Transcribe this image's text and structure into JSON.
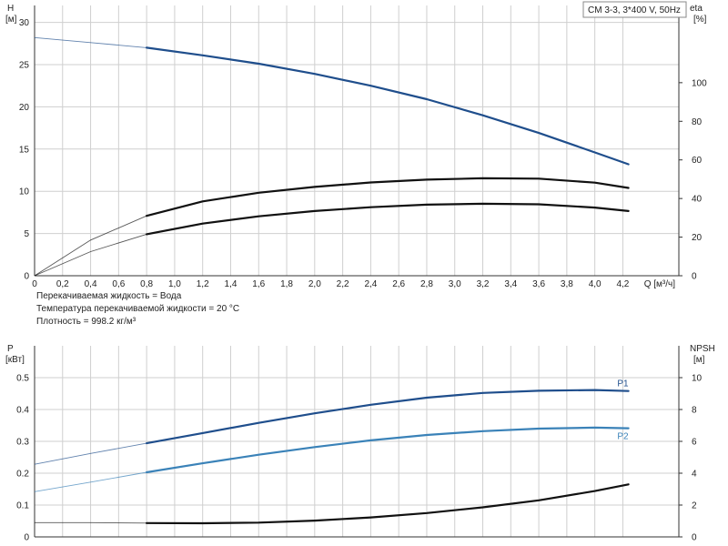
{
  "chart_data": [
    {
      "type": "line",
      "title": "CM 3-3, 3*400 V, 50Hz",
      "xlabel": "Q [м³/ч]",
      "ylabel": "H\n[м]",
      "ylabel_line1": "H",
      "ylabel_line2": "[м]",
      "y2label_line1": "eta",
      "y2label_line2": "[%]",
      "xlim": [
        0,
        4.6
      ],
      "ylim": [
        0,
        32
      ],
      "y2lim": [
        0,
        140
      ],
      "x_ticks": [
        "0",
        "0,2",
        "0,4",
        "0,6",
        "0,8",
        "1,0",
        "1,2",
        "1,4",
        "1,6",
        "1,8",
        "2,0",
        "2,2",
        "2,4",
        "2,6",
        "2,8",
        "3,0",
        "3,2",
        "3,4",
        "3,6",
        "3,8",
        "4,0",
        "4,2"
      ],
      "y_ticks": [
        "0",
        "5",
        "10",
        "15",
        "20",
        "25",
        "30"
      ],
      "y2_ticks": [
        "0",
        "20",
        "40",
        "60",
        "80",
        "100"
      ],
      "grid": true,
      "series": [
        {
          "axis": "left",
          "color": "#1f4e8c",
          "x": [
            0,
            0.4,
            0.8,
            1.2,
            1.6,
            2.0,
            2.4,
            2.8,
            3.2,
            3.6,
            4.0,
            4.24
          ],
          "values": [
            28.2,
            27.6,
            27.0,
            26.1,
            25.1,
            23.9,
            22.5,
            20.9,
            19.0,
            16.9,
            14.6,
            13.2
          ]
        },
        {
          "axis": "right",
          "color": "#111111",
          "x": [
            0,
            0.4,
            0.8,
            1.2,
            1.6,
            2.0,
            2.4,
            2.8,
            3.2,
            3.6,
            4.0,
            4.24
          ],
          "values": [
            0,
            18.5,
            31,
            38.5,
            43,
            46,
            48.3,
            49.8,
            50.5,
            50.3,
            48.2,
            45.5
          ]
        },
        {
          "axis": "right",
          "color": "#111111",
          "x": [
            0,
            0.4,
            0.8,
            1.2,
            1.6,
            2.0,
            2.4,
            2.8,
            3.2,
            3.6,
            4.0,
            4.24
          ],
          "values": [
            0,
            12.5,
            21.5,
            27,
            30.8,
            33.5,
            35.5,
            36.8,
            37.3,
            37,
            35.3,
            33.5
          ]
        }
      ]
    },
    {
      "type": "line",
      "xlim": [
        0,
        4.6
      ],
      "ylim": [
        0,
        0.6
      ],
      "y2lim": [
        0,
        12
      ],
      "ylabel_line1": "P",
      "ylabel_line2": "[кВт]",
      "y2label_line1": "NPSH",
      "y2label_line2": "[м]",
      "y_ticks": [
        "0",
        "0.1",
        "0.2",
        "0.3",
        "0.4",
        "0.5"
      ],
      "y2_ticks": [
        "0",
        "2",
        "4",
        "6",
        "8",
        "10"
      ],
      "grid": true,
      "series": [
        {
          "name": "P1",
          "axis": "left",
          "color": "#1f4e8c",
          "x": [
            0,
            0.4,
            0.8,
            1.2,
            1.6,
            2.0,
            2.4,
            2.8,
            3.2,
            3.6,
            4.0,
            4.24
          ],
          "values": [
            0.228,
            0.262,
            0.294,
            0.326,
            0.358,
            0.388,
            0.415,
            0.437,
            0.452,
            0.459,
            0.461,
            0.458
          ]
        },
        {
          "name": "P2",
          "axis": "left",
          "color": "#3a82b8",
          "x": [
            0,
            0.4,
            0.8,
            1.2,
            1.6,
            2.0,
            2.4,
            2.8,
            3.2,
            3.6,
            4.0,
            4.24
          ],
          "values": [
            0.142,
            0.172,
            0.203,
            0.231,
            0.258,
            0.282,
            0.303,
            0.32,
            0.332,
            0.34,
            0.343,
            0.341
          ]
        },
        {
          "axis": "right",
          "color": "#111111",
          "x": [
            0,
            0.4,
            0.8,
            1.2,
            1.6,
            2.0,
            2.4,
            2.8,
            3.2,
            3.6,
            4.0,
            4.24
          ],
          "values": [
            0.9,
            0.9,
            0.87,
            0.86,
            0.9,
            1.02,
            1.22,
            1.5,
            1.86,
            2.3,
            2.88,
            3.3
          ]
        }
      ]
    }
  ],
  "fluid_notes": [
    "Перекачиваемая жидкость = Вода",
    "Температура перекачиваемой жидкости = 20 °C",
    "Плотность = 998.2 кг/м³"
  ]
}
